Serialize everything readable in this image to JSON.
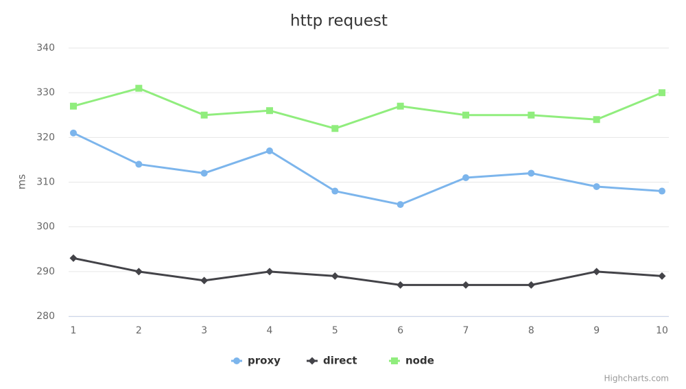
{
  "chart_data": {
    "type": "line",
    "title": "http request",
    "y_label": "ms",
    "categories": [
      "1",
      "2",
      "3",
      "4",
      "5",
      "6",
      "7",
      "8",
      "9",
      "10"
    ],
    "series": [
      {
        "name": "proxy",
        "color": "#7cb5ec",
        "marker": "circle",
        "values": [
          321,
          314,
          312,
          317,
          308,
          305,
          311,
          312,
          309,
          308
        ]
      },
      {
        "name": "direct",
        "color": "#434348",
        "marker": "diamond",
        "values": [
          293,
          290,
          288,
          290,
          289,
          287,
          287,
          287,
          290,
          289
        ]
      },
      {
        "name": "node",
        "color": "#90ed7d",
        "marker": "square",
        "values": [
          327,
          331,
          325,
          326,
          322,
          327,
          325,
          325,
          324,
          330
        ]
      }
    ],
    "ylim": [
      280,
      340
    ],
    "yticks": [
      280,
      290,
      300,
      310,
      320,
      330,
      340
    ],
    "grid": true,
    "legend": "bottom",
    "credits": "Highcharts.com"
  }
}
